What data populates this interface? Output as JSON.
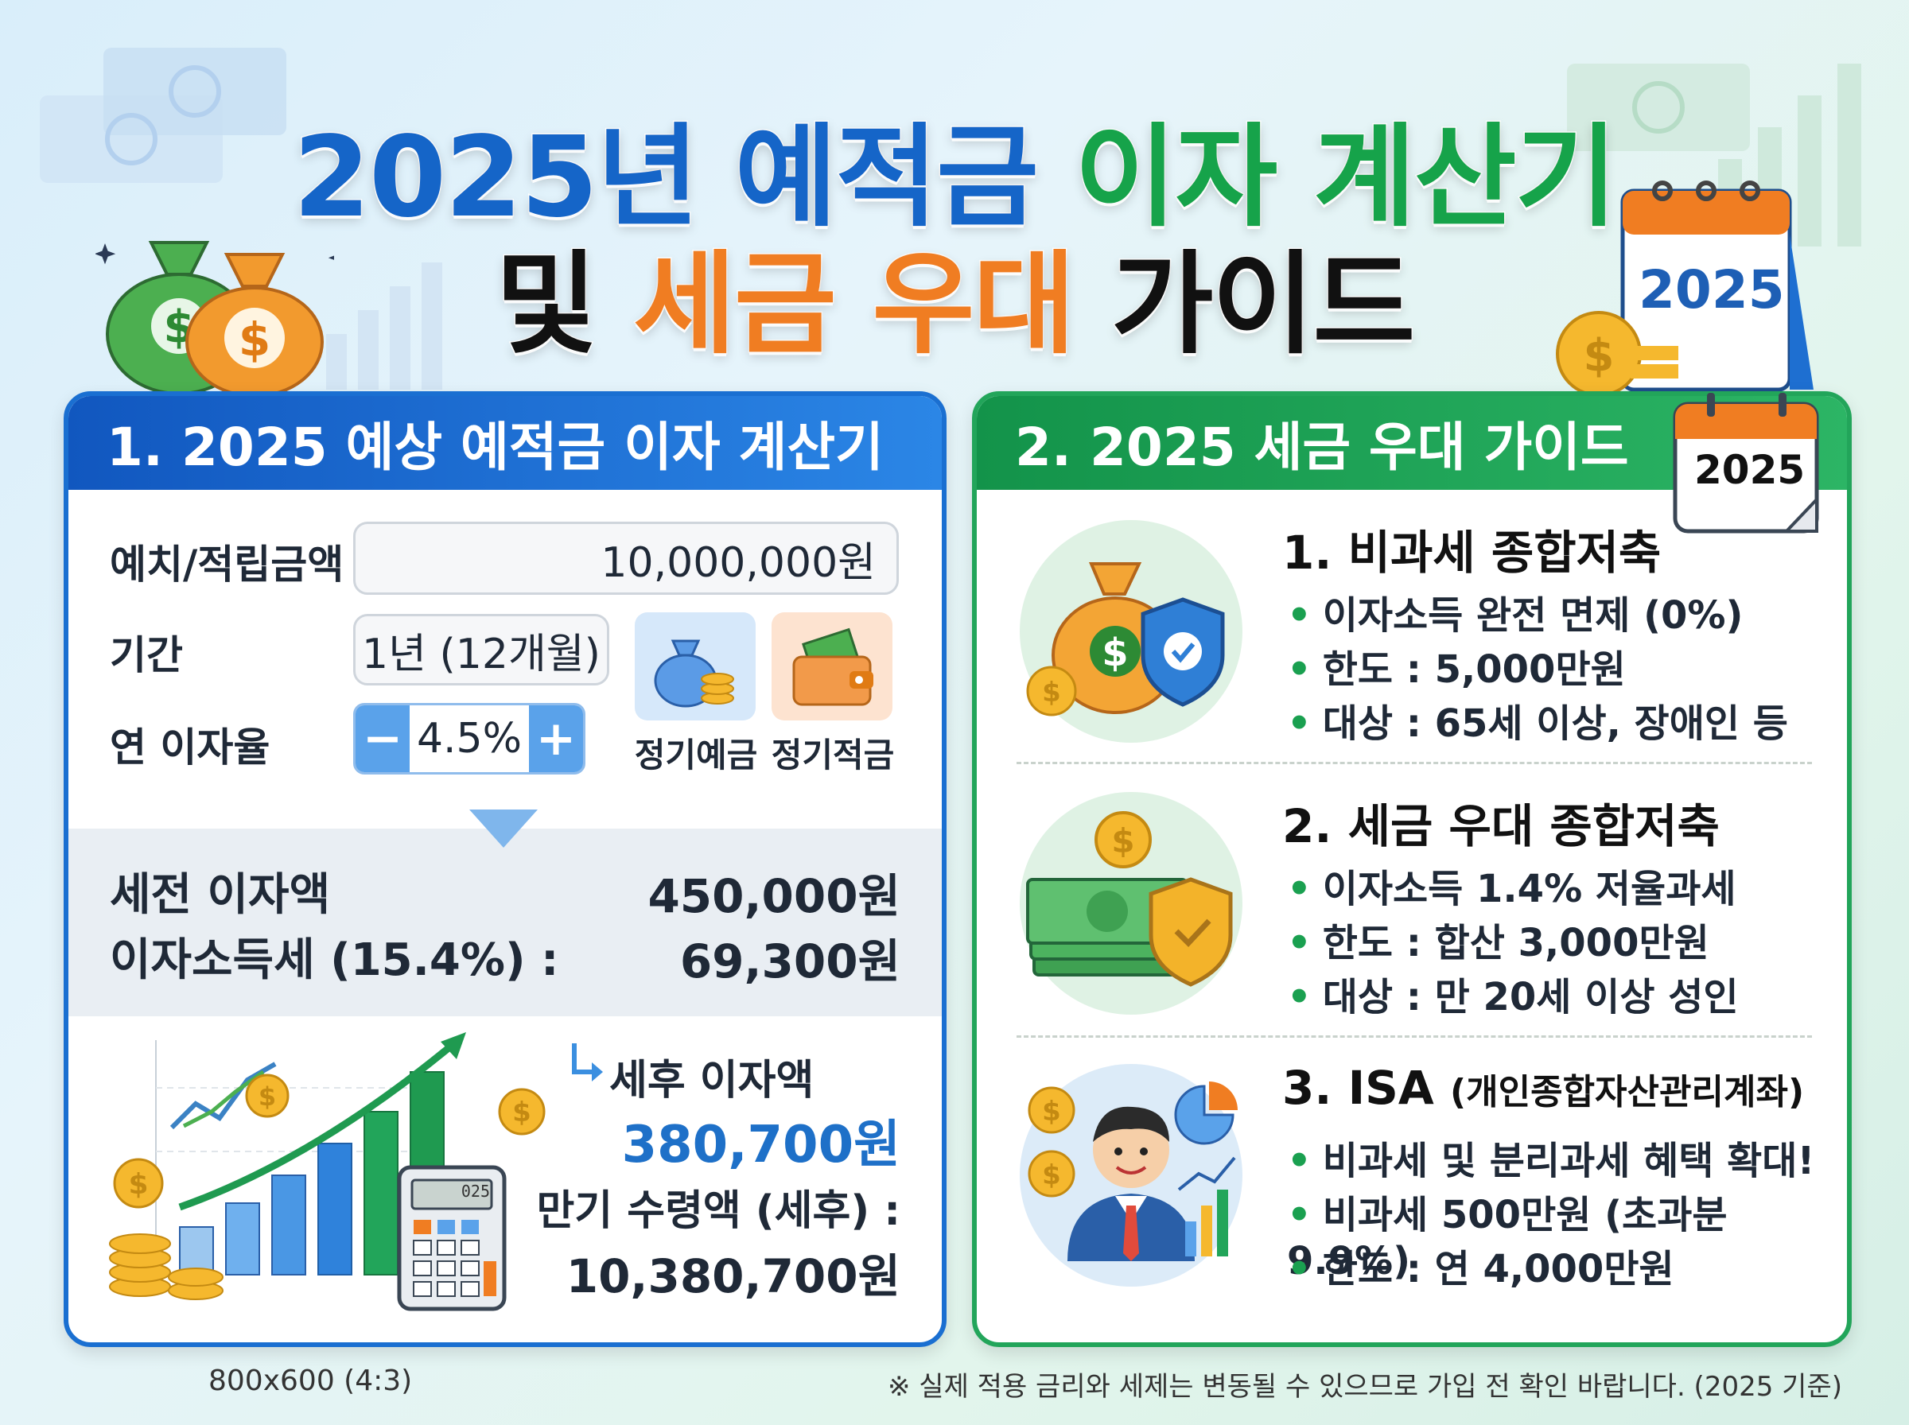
{
  "title": {
    "line1_part1": "2025년 예적금",
    "line1_part2": "이자 계산기",
    "line2_part1": "및",
    "line2_part2": "세금 우대",
    "line2_part3": "가이드"
  },
  "calendar_year": "2025",
  "calculator": {
    "header": "1. 2025 예상 예적금 이자 계산기",
    "amount_label": "예치/적립금액",
    "amount_value": "10,000,000원",
    "period_label": "기간",
    "period_value": "1년 (12개월)",
    "rate_label": "연 이자율",
    "rate_value": "4.5%",
    "rate_minus": "−",
    "rate_plus": "+",
    "deposit_type_1": "정기예금",
    "deposit_type_2": "정기적금",
    "pretax_label": "세전 이자액",
    "pretax_value": "450,000원",
    "tax_label": "이자소득세 (15.4%) :",
    "tax_value": "69,300원",
    "aftertax_label": "세후 이자액",
    "aftertax_value": "380,700원",
    "maturity_label": "만기 수령액 (세후) :",
    "maturity_value": "10,380,700원",
    "calc_display": "025"
  },
  "tax_guide": {
    "header": "2. 2025 세금 우대 가이드",
    "sections": [
      {
        "title": "1. 비과세 종합저축",
        "bullets": [
          "이자소득 완전 면제 (0%)",
          "한도 : 5,000만원",
          "대상 : 65세 이상, 장애인 등"
        ]
      },
      {
        "title": "2. 세금 우대 종합저축",
        "bullets": [
          "이자소득 1.4% 저율과세",
          "한도 : 합산 3,000만원",
          "대상 : 만 20세 이상 성인"
        ]
      },
      {
        "title": "3. ISA",
        "subtitle": "(개인종합자산관리계좌)",
        "bullets": [
          "비과세 및 분리과세 혜택 확대!",
          "비과세 500만원 (초과분 9.9%)",
          "한도 : 연 4,000만원"
        ]
      }
    ]
  },
  "footer": {
    "size_note": "800x600 (4:3)",
    "disclaimer": "※ 실제 적용 금리와 세제는 변동될 수 있으므로 가입 전 확인 바랍니다. (2025 기준)"
  },
  "colors": {
    "blue": "#1565c8",
    "green": "#16a34a",
    "orange": "#f07d22",
    "coin": "#f5b82e"
  }
}
